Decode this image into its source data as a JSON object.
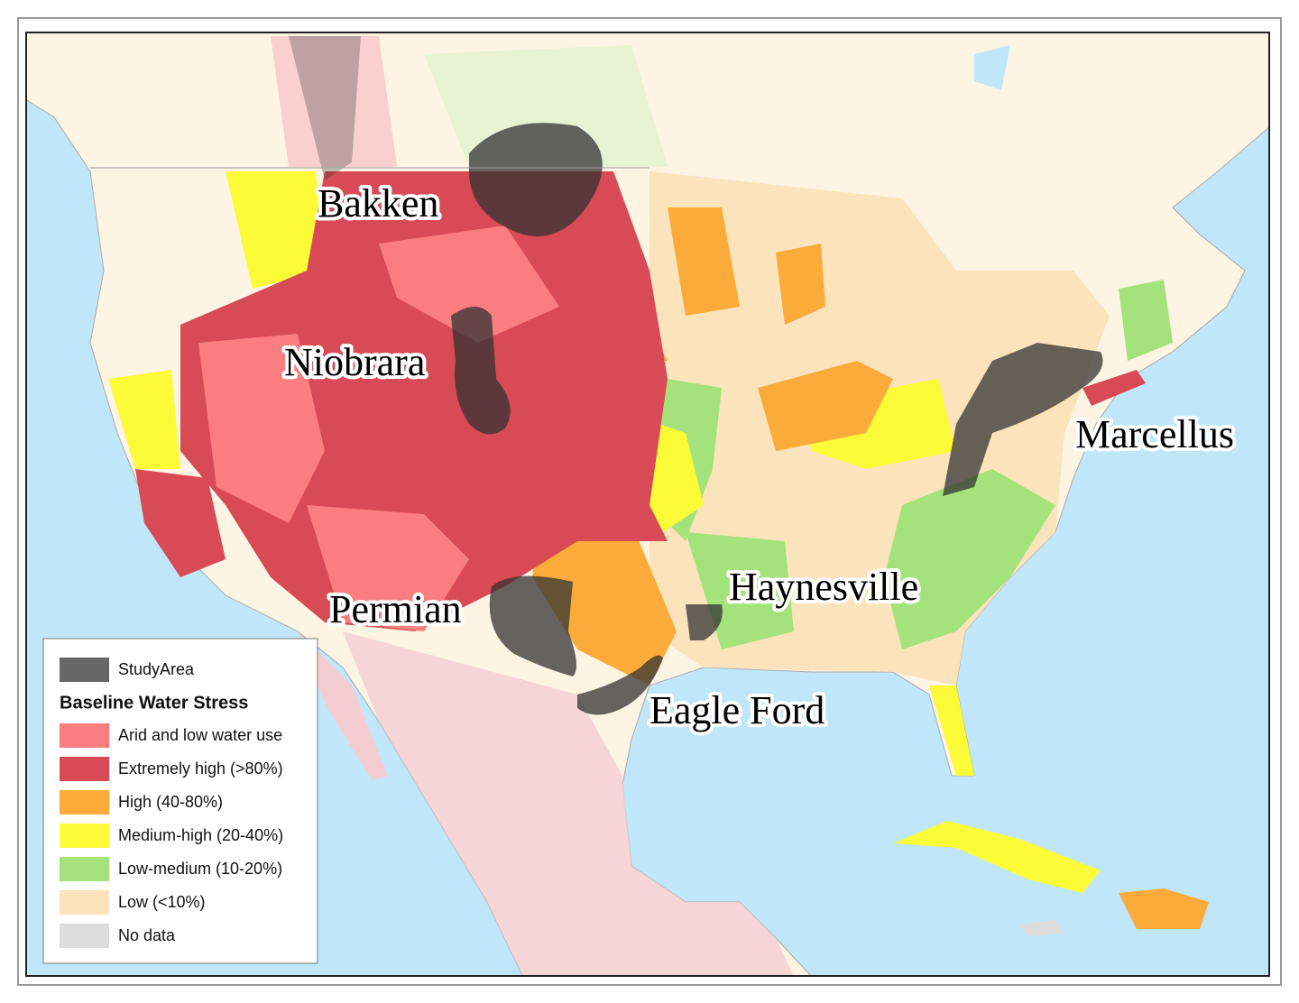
{
  "labels": [
    "Bakken",
    "Niobrara",
    "Permian",
    "Haynesville",
    "Eagle Ford",
    "Marcellus"
  ],
  "legend": {
    "study_area": {
      "label": "StudyArea",
      "color": "#666666"
    },
    "title": "Baseline Water Stress",
    "items": [
      {
        "label": "Arid and low water use",
        "color": "#fb7d7f"
      },
      {
        "label": "Extremely high (>80%)",
        "color": "#d84a55"
      },
      {
        "label": "High (40-80%)",
        "color": "#fbab3a"
      },
      {
        "label": "Medium-high (20-40%)",
        "color": "#fbfb38"
      },
      {
        "label": "Low-medium (10-20%)",
        "color": "#a4e27c"
      },
      {
        "label": "Low (<10%)",
        "color": "#fbe3bb"
      },
      {
        "label": "No data",
        "color": "#dcdcdc"
      }
    ]
  }
}
